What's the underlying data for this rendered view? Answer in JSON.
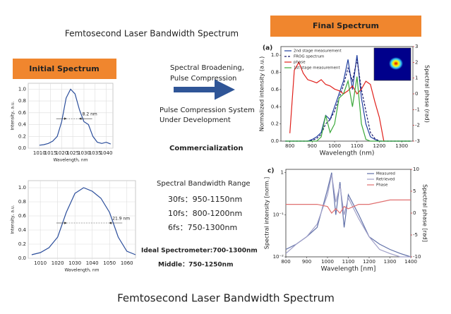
{
  "slide": {
    "title": "Femtosecond Laser Bandwidth Spectrum",
    "initial_label": "Initial Spectrum",
    "final_label": "Final Spectrum",
    "notes": [
      "Spectral Broadening,",
      "Pulse Compression",
      "Pulse Compression System",
      "Under Development",
      "Commercialization",
      "Spectral Bandwidth Range",
      "30fs：950-1150nm",
      "10fs：800-1200nm",
      "6fs：750-1300nm",
      "Ideal Spectrometer:700-1300nm",
      "Middle：750-1250nm"
    ],
    "footer": "Femtosecond Laser Bandwidth Spectrum"
  },
  "chart_data": [
    {
      "type": "line",
      "xlabel": "Wavelength, nm",
      "ylabel": "Intensity, a.u.",
      "annotation": "8.2 nm",
      "grid": true,
      "x": [
        1010,
        1012,
        1014,
        1016,
        1018,
        1020,
        1022,
        1024,
        1026,
        1028,
        1030,
        1032,
        1034,
        1036,
        1038,
        1040,
        1042
      ],
      "series": [
        {
          "color": "#2a4d9b",
          "values": [
            0.05,
            0.06,
            0.08,
            0.12,
            0.2,
            0.45,
            0.85,
            1.0,
            0.92,
            0.65,
            0.45,
            0.4,
            0.2,
            0.1,
            0.08,
            0.1,
            0.07
          ]
        }
      ],
      "xlim": [
        1005,
        1043
      ],
      "xticks": [
        1010,
        1015,
        1020,
        1025,
        1030,
        1035,
        1040
      ],
      "ylim": [
        0,
        1.1
      ],
      "yticks": [
        {
          "value": 0,
          "label": "0.0"
        },
        0.2,
        0.4,
        0.6,
        0.8,
        {
          "value": 1,
          "label": "1.0"
        }
      ]
    },
    {
      "type": "line",
      "xlabel": "Wavelength, nm",
      "ylabel": "Intensity, a.u.",
      "annotation": "21.9 nm",
      "grid": true,
      "x": [
        1005,
        1010,
        1015,
        1020,
        1025,
        1030,
        1035,
        1040,
        1045,
        1050,
        1055,
        1060,
        1065
      ],
      "series": [
        {
          "color": "#2a4d9b",
          "values": [
            0.05,
            0.08,
            0.15,
            0.3,
            0.65,
            0.92,
            1.0,
            0.95,
            0.85,
            0.65,
            0.3,
            0.1,
            0.05
          ]
        }
      ],
      "xlim": [
        1003,
        1065
      ],
      "xticks": [
        1010,
        1020,
        1030,
        1040,
        1050,
        1060
      ],
      "ylim": [
        0,
        1.1
      ],
      "yticks": [
        {
          "value": 0,
          "label": "0.0"
        },
        0.2,
        0.4,
        0.6,
        0.8,
        {
          "value": 1,
          "label": "1.0"
        }
      ]
    },
    {
      "type": "line",
      "panel_label": "(a)",
      "xlabel": "Wavelength (nm)",
      "ylabel": "Normalized intensity (a.u.)",
      "y2label": "Spectral phase (rad)",
      "legend": "upper left",
      "grid": false,
      "x": [
        780,
        800,
        820,
        840,
        860,
        880,
        900,
        920,
        940,
        960,
        980,
        1000,
        1020,
        1040,
        1060,
        1080,
        1100,
        1120,
        1140,
        1160,
        1180,
        1200,
        1220,
        1240,
        1260,
        1280,
        1300,
        1320,
        1340
      ],
      "series": [
        {
          "name": "2nd stage measurement",
          "color": "#1f3fa0",
          "values": [
            0,
            0,
            0,
            0,
            0,
            0,
            0.02,
            0.05,
            0.1,
            0.3,
            0.25,
            0.4,
            0.55,
            0.7,
            0.95,
            0.6,
            1.0,
            0.5,
            0.2,
            0.05,
            0.02,
            0,
            0,
            0,
            0,
            0,
            0,
            0,
            0
          ]
        },
        {
          "name": "FROG spectrum",
          "color": "#1a1a6e",
          "dashed": true,
          "values": [
            0,
            0,
            0,
            0,
            0,
            0,
            0.01,
            0.03,
            0.08,
            0.2,
            0.25,
            0.35,
            0.5,
            0.65,
            0.85,
            0.7,
            0.95,
            0.6,
            0.35,
            0.1,
            0.03,
            0,
            0,
            0,
            0,
            0,
            0,
            0,
            0
          ]
        },
        {
          "name": "phase",
          "color": "#e0201b",
          "axis": "y2",
          "values": [
            null,
            -2.5,
            1.5,
            2.0,
            1.3,
            0.9,
            0.8,
            0.7,
            0.9,
            0.6,
            0.5,
            0.3,
            0.2,
            0.0,
            0.2,
            0.5,
            0.0,
            0.3,
            0.8,
            0.6,
            -0.5,
            -1.5,
            -3,
            null,
            null,
            null,
            null,
            null,
            null
          ]
        },
        {
          "name": "1st stage measurement",
          "color": "#3aa83a",
          "values": [
            0,
            0,
            0,
            0,
            0,
            0,
            0,
            0,
            0.05,
            0.3,
            0.1,
            0.2,
            0.5,
            0.55,
            0.7,
            0.4,
            0.75,
            0.2,
            0.02,
            0,
            0,
            0,
            0,
            0,
            0,
            0,
            0,
            0,
            0
          ]
        }
      ],
      "xlim": [
        760,
        1350
      ],
      "xticks": [
        800,
        900,
        1000,
        1100,
        1200,
        1300
      ],
      "ylim": [
        0,
        1.1
      ],
      "yticks": [
        {
          "value": 0,
          "label": "0.0"
        },
        0.2,
        0.4,
        0.6,
        0.8,
        {
          "value": 1,
          "label": "1.0"
        }
      ],
      "y2lim": [
        -3,
        3
      ],
      "y2ticks": [
        -3,
        -2,
        -1,
        0,
        1,
        2,
        3
      ]
    },
    {
      "type": "line",
      "panel_label": "c)",
      "xlabel": "Wavelength [nm]",
      "ylabel": "Spectral intensity [norm.]",
      "y2label": "Spectral phase [rad]",
      "legend": "upper right",
      "log_y": true,
      "grid": false,
      "x": [
        800,
        850,
        900,
        950,
        1000,
        1020,
        1040,
        1060,
        1080,
        1100,
        1150,
        1200,
        1250,
        1300,
        1350,
        1400
      ],
      "series": [
        {
          "name": "Measured",
          "color": "#6070a8",
          "values": [
            0.015,
            0.02,
            0.03,
            0.05,
            0.4,
            1.0,
            0.1,
            0.6,
            0.05,
            0.3,
            0.1,
            0.03,
            0.02,
            0.015,
            0.012,
            0.01
          ]
        },
        {
          "name": "Retrieved",
          "color": "#a0a0c8",
          "values": [
            0.012,
            0.02,
            0.03,
            0.06,
            0.3,
            0.9,
            0.2,
            0.5,
            0.1,
            0.25,
            0.08,
            0.03,
            0.015,
            0.012,
            0.01,
            0.01
          ]
        },
        {
          "name": "Phase",
          "color": "#e07070",
          "axis": "y2",
          "values": [
            2,
            2,
            2,
            2,
            1.5,
            0,
            1,
            0,
            1.5,
            1,
            2,
            2,
            2.5,
            3,
            3,
            3
          ]
        }
      ],
      "xlim": [
        800,
        1400
      ],
      "xticks": [
        800,
        900,
        1000,
        1100,
        1200,
        1300,
        1400
      ],
      "ylim": [
        0.01,
        1.2
      ],
      "yticks": [
        {
          "value": 0.01,
          "label": "10⁻²"
        },
        {
          "value": 0.1,
          "label": "10⁻¹"
        },
        1
      ],
      "y2lim": [
        -10,
        10
      ],
      "y2ticks": [
        -10,
        -5,
        0,
        5,
        10
      ]
    }
  ]
}
